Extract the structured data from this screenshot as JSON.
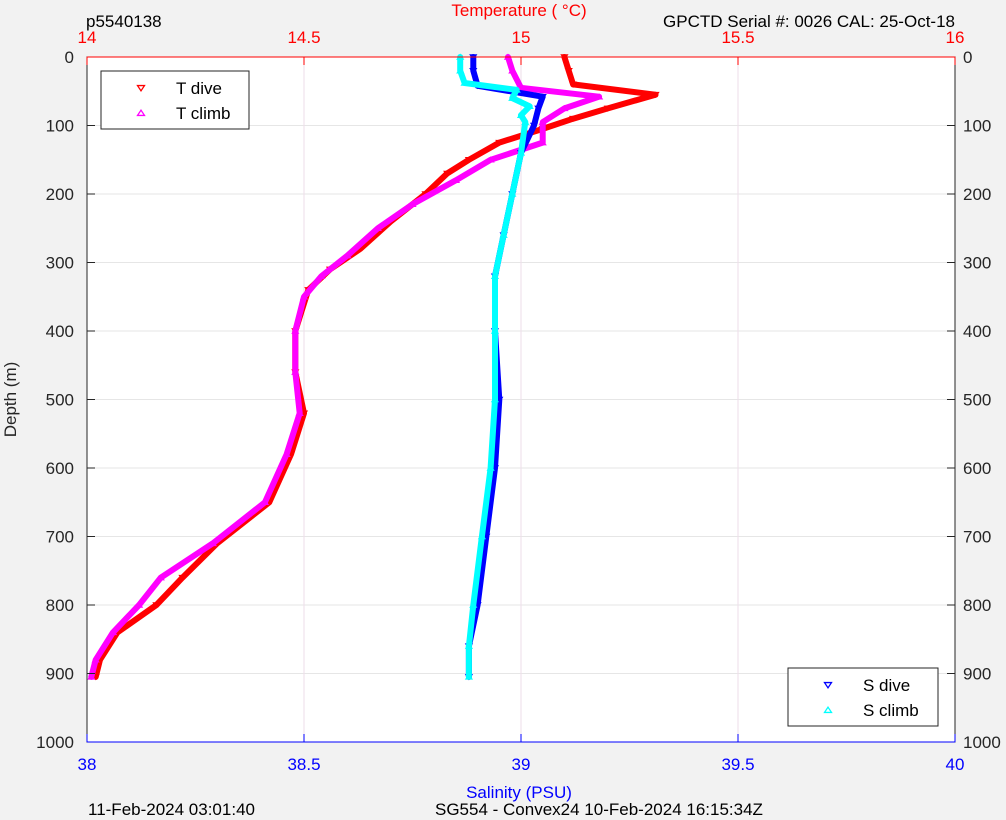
{
  "header": {
    "profile_id": "p5540138",
    "serial_info": "GPCTD Serial #: 0026 CAL: 25-Oct-18"
  },
  "footer": {
    "timestamp": "11-Feb-2024 03:01:40",
    "mission": "SG554 - Convex24 10-Feb-2024 16:15:34Z"
  },
  "colors": {
    "t_dive": "#ff0000",
    "t_climb": "#ff00ff",
    "s_dive": "#0000ff",
    "s_climb": "#00ffff",
    "temperature_axis": "#ff0000",
    "salinity_axis": "#0000ff",
    "background": "#ffffff",
    "figure_background": "#f2f2f2"
  },
  "chart_data": {
    "type": "line",
    "ylabel": "Depth (m)",
    "ylim": [
      1000,
      0
    ],
    "yticks": [
      0,
      100,
      200,
      300,
      400,
      500,
      600,
      700,
      800,
      900,
      1000
    ],
    "top_axis": {
      "label": "Temperature (    °C)",
      "lim": [
        14,
        16
      ],
      "ticks": [
        "14",
        "14.5",
        "15",
        "15.5",
        "16"
      ]
    },
    "bottom_axis": {
      "label": "Salinity (PSU)",
      "lim": [
        38,
        40
      ],
      "ticks": [
        "38",
        "38.5",
        "39",
        "39.5",
        "40"
      ]
    },
    "grid": true,
    "legend_temperature": {
      "placement": "top-left",
      "entries": [
        "T dive",
        "T climb"
      ]
    },
    "legend_salinity": {
      "placement": "bottom-right",
      "entries": [
        "S dive",
        "S climb"
      ]
    },
    "series": [
      {
        "name": "T dive",
        "axis": "temperature",
        "marker": "down-triangle",
        "points": [
          [
            15.1,
            0
          ],
          [
            15.11,
            20
          ],
          [
            15.12,
            40
          ],
          [
            15.31,
            55
          ],
          [
            15.2,
            75
          ],
          [
            15.12,
            90
          ],
          [
            15.05,
            105
          ],
          [
            14.95,
            125
          ],
          [
            14.88,
            150
          ],
          [
            14.83,
            170
          ],
          [
            14.78,
            200
          ],
          [
            14.7,
            240
          ],
          [
            14.63,
            280
          ],
          [
            14.56,
            310
          ],
          [
            14.51,
            340
          ],
          [
            14.48,
            400
          ],
          [
            14.48,
            460
          ],
          [
            14.5,
            520
          ],
          [
            14.47,
            580
          ],
          [
            14.42,
            650
          ],
          [
            14.3,
            710
          ],
          [
            14.22,
            760
          ],
          [
            14.16,
            800
          ],
          [
            14.07,
            840
          ],
          [
            14.03,
            880
          ],
          [
            14.02,
            905
          ]
        ]
      },
      {
        "name": "T climb",
        "axis": "temperature",
        "marker": "up-triangle",
        "points": [
          [
            14.97,
            0
          ],
          [
            14.98,
            20
          ],
          [
            15.0,
            45
          ],
          [
            15.18,
            58
          ],
          [
            15.1,
            75
          ],
          [
            15.05,
            95
          ],
          [
            15.05,
            125
          ],
          [
            14.93,
            150
          ],
          [
            14.85,
            180
          ],
          [
            14.75,
            215
          ],
          [
            14.67,
            250
          ],
          [
            14.6,
            290
          ],
          [
            14.54,
            320
          ],
          [
            14.5,
            350
          ],
          [
            14.48,
            400
          ],
          [
            14.48,
            460
          ],
          [
            14.49,
            520
          ],
          [
            14.46,
            580
          ],
          [
            14.41,
            650
          ],
          [
            14.29,
            710
          ],
          [
            14.17,
            760
          ],
          [
            14.12,
            800
          ],
          [
            14.06,
            840
          ],
          [
            14.02,
            880
          ],
          [
            14.01,
            905
          ]
        ]
      },
      {
        "name": "S dive",
        "axis": "salinity",
        "marker": "down-triangle",
        "points": [
          [
            38.89,
            0
          ],
          [
            38.89,
            20
          ],
          [
            38.9,
            42
          ],
          [
            39.05,
            58
          ],
          [
            39.04,
            75
          ],
          [
            39.03,
            100
          ],
          [
            39.0,
            140
          ],
          [
            38.98,
            200
          ],
          [
            38.96,
            260
          ],
          [
            38.94,
            320
          ],
          [
            38.94,
            400
          ],
          [
            38.95,
            500
          ],
          [
            38.94,
            600
          ],
          [
            38.92,
            700
          ],
          [
            38.9,
            800
          ],
          [
            38.88,
            860
          ],
          [
            38.88,
            905
          ]
        ]
      },
      {
        "name": "S climb",
        "axis": "salinity",
        "marker": "up-triangle",
        "points": [
          [
            38.86,
            0
          ],
          [
            38.86,
            20
          ],
          [
            38.87,
            38
          ],
          [
            38.99,
            48
          ],
          [
            38.98,
            60
          ],
          [
            39.02,
            72
          ],
          [
            39.0,
            85
          ],
          [
            39.01,
            95
          ],
          [
            39.0,
            140
          ],
          [
            38.98,
            200
          ],
          [
            38.96,
            260
          ],
          [
            38.94,
            320
          ],
          [
            38.94,
            400
          ],
          [
            38.94,
            500
          ],
          [
            38.93,
            600
          ],
          [
            38.91,
            700
          ],
          [
            38.89,
            800
          ],
          [
            38.88,
            860
          ],
          [
            38.88,
            905
          ]
        ]
      }
    ]
  }
}
